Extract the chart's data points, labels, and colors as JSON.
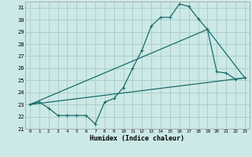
{
  "xlabel": "Humidex (Indice chaleur)",
  "bg_color": "#cce9e7",
  "grid_color": "#aacfcc",
  "line_color": "#1a6b6b",
  "xlim": [
    -0.5,
    23.5
  ],
  "ylim": [
    21,
    31.5
  ],
  "xticks": [
    0,
    1,
    2,
    3,
    4,
    5,
    6,
    7,
    8,
    9,
    10,
    11,
    12,
    13,
    14,
    15,
    16,
    17,
    18,
    19,
    20,
    21,
    22,
    23
  ],
  "yticks": [
    21,
    22,
    23,
    24,
    25,
    26,
    27,
    28,
    29,
    30,
    31
  ],
  "line1_x": [
    0,
    1,
    2,
    3,
    4,
    5,
    6,
    7,
    8,
    9,
    10,
    11,
    12,
    13,
    14,
    15,
    16,
    17,
    18,
    19,
    20,
    21,
    22,
    23
  ],
  "line1_y": [
    23.0,
    23.2,
    22.7,
    22.1,
    22.1,
    22.1,
    22.1,
    21.4,
    23.2,
    23.5,
    24.4,
    26.0,
    27.5,
    29.5,
    30.2,
    30.2,
    31.3,
    31.1,
    30.1,
    29.2,
    25.7,
    25.6,
    25.1,
    25.2
  ],
  "line2_x": [
    0,
    23
  ],
  "line2_y": [
    23.0,
    25.2
  ],
  "line3_x": [
    0,
    19,
    23
  ],
  "line3_y": [
    23.0,
    29.2,
    25.2
  ]
}
